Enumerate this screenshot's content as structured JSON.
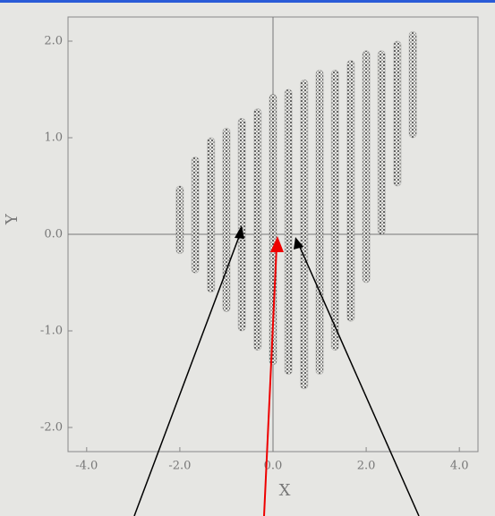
{
  "chart_data": {
    "type": "range",
    "x_label": "X",
    "y_label": "Y",
    "xlim": [
      -4.4,
      4.4
    ],
    "ylim": [
      -2.25,
      2.25
    ],
    "xticks": [
      {
        "value": -4,
        "label": "-4.0"
      },
      {
        "value": -2,
        "label": "-2.0"
      },
      {
        "value": 0,
        "label": "0.0"
      },
      {
        "value": 2,
        "label": "2.0"
      },
      {
        "value": 4,
        "label": "4.0"
      }
    ],
    "yticks": [
      {
        "value": -2,
        "label": "-2.0"
      },
      {
        "value": -1,
        "label": "-1.0"
      },
      {
        "value": 0,
        "label": "0.0"
      },
      {
        "value": 1,
        "label": "1.0"
      },
      {
        "value": 2,
        "label": "2.0"
      }
    ],
    "color": "#3a3a3a",
    "x": [
      -2.0,
      -1.67,
      -1.33,
      -1.0,
      -0.67,
      -0.33,
      0,
      0.33,
      0.67,
      1.0,
      1.33,
      1.67,
      2.0,
      2.33,
      2.67,
      3.0
    ],
    "low": [
      -0.2,
      -0.4,
      -0.6,
      -0.8,
      -1.0,
      -1.2,
      -1.35,
      -1.45,
      -1.6,
      -1.45,
      -1.2,
      -0.9,
      -0.5,
      0.0,
      0.5,
      1.0
    ],
    "high": [
      0.5,
      0.8,
      1.0,
      1.1,
      1.2,
      1.3,
      1.45,
      1.5,
      1.6,
      1.7,
      1.7,
      1.8,
      1.9,
      1.9,
      2.0,
      2.1
    ]
  }
}
